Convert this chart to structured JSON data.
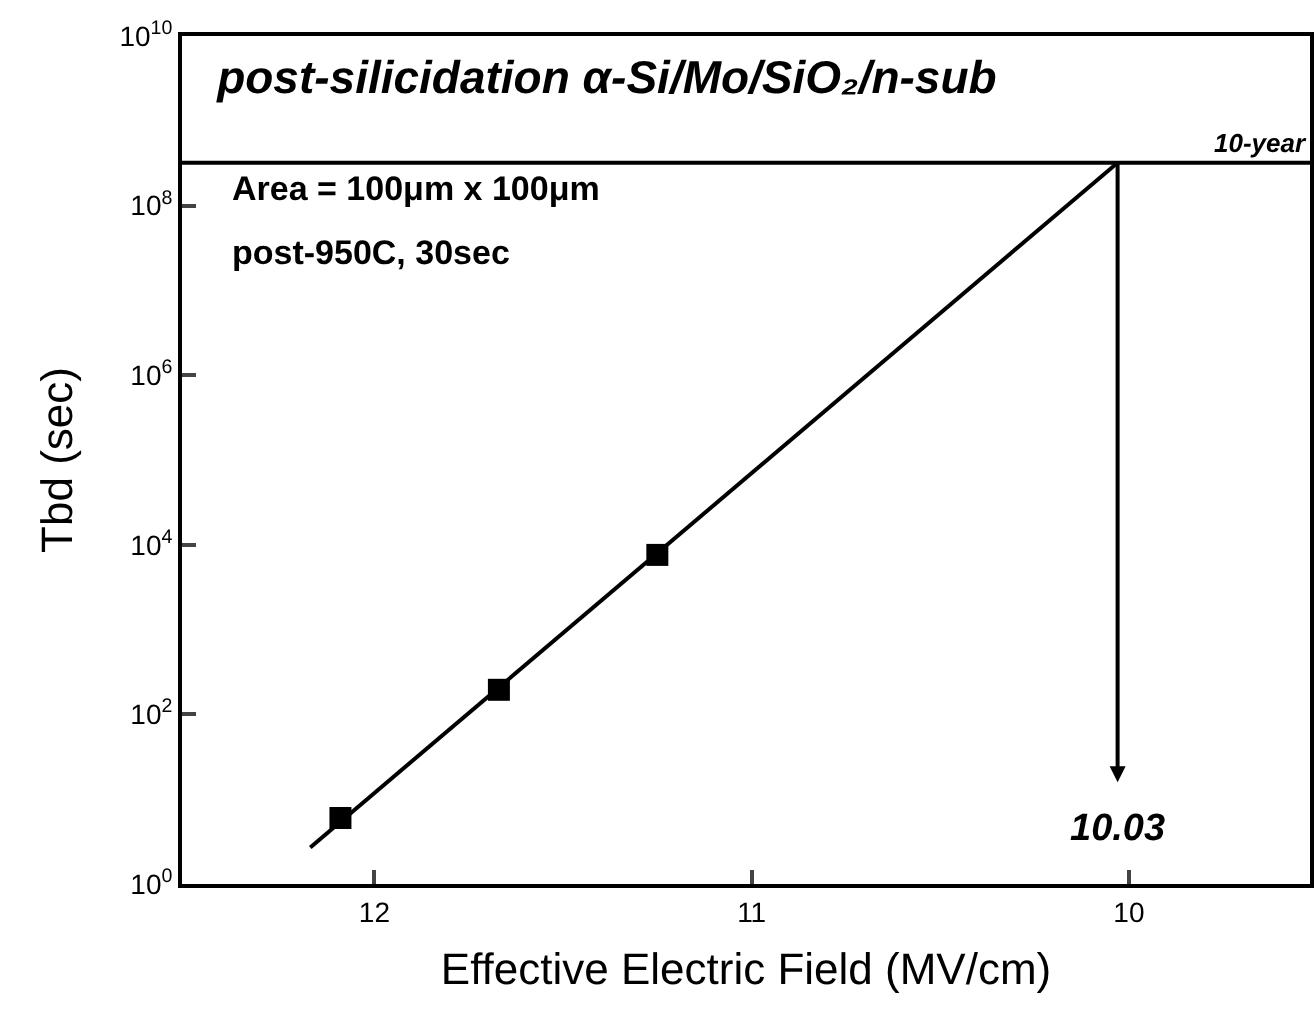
{
  "chart_data": {
    "type": "scatter",
    "title": "post-silicidation α-Si/Mo/SiO₂/n-sub",
    "xlabel": "Effective Electric Field (MV/cm)",
    "ylabel": "Tbd (sec)",
    "series": [
      {
        "type": "scatter",
        "color": "#000000",
        "marker": "square",
        "x": [
          12.09,
          11.67,
          11.25
        ],
        "values": [
          6,
          195,
          7600
        ]
      },
      {
        "type": "line",
        "color": "#000000",
        "marker": "none",
        "line_style": "solid",
        "x": [
          12.17,
          10.03
        ],
        "values": [
          2.7,
          320000000
        ]
      }
    ],
    "log": "y",
    "xlim": [
      12.51,
      9.52
    ],
    "xticks": [
      12,
      11,
      10
    ],
    "ylim": [
      1,
      10000000000
    ],
    "yticks": [
      {
        "value": 1,
        "label": "10$^{0}$"
      },
      {
        "value": 100,
        "label": "10$^{2}$"
      },
      {
        "value": 10000,
        "label": "10$^{4}$"
      },
      {
        "value": 1000000,
        "label": "10$^{6}$"
      },
      {
        "value": 100000000,
        "label": "10$^{8}$"
      },
      {
        "value": 10000000000,
        "label": "10$^{10}$"
      }
    ],
    "ref_lines": [
      {
        "axis": "y",
        "value": 320000000,
        "label": "10-year",
        "color": "#000000"
      },
      {
        "axis": "x",
        "value": 10.03,
        "label": "10.03",
        "color": "#000000"
      }
    ],
    "annotations": [
      "Area = 100μm x 100μm",
      "post-950C, 30sec"
    ],
    "grid": false
  }
}
